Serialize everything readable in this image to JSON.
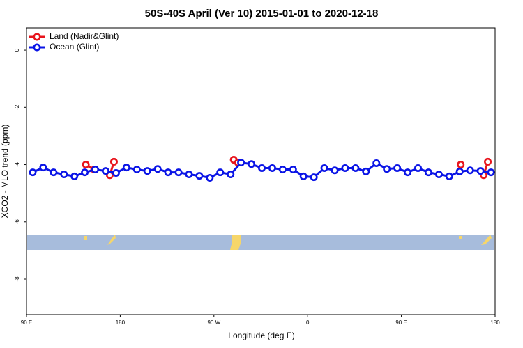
{
  "chart_data": {
    "type": "line",
    "title": "50S-40S April (Ver 10)   2015-01-01 to 2020-12-18",
    "x_label": "Longitude (deg E)",
    "y_label": "XCO2 - MLO trend (ppm)",
    "xlim": [
      90,
      540
    ],
    "xticks": [
      {
        "value": 90,
        "label": "90 E"
      },
      {
        "value": 180,
        "label": "180"
      },
      {
        "value": 270,
        "label": "90 W"
      },
      {
        "value": 360,
        "label": "0"
      },
      {
        "value": 450,
        "label": "90 E"
      },
      {
        "value": 540,
        "label": "180"
      }
    ],
    "ylim": [
      -9.24,
      0.78
    ],
    "yticks": [
      0,
      -2,
      -4,
      -6,
      -8
    ],
    "legend": "top-left",
    "series": [
      {
        "name": "Land (Nadir&Glint)",
        "color": "#e8141c",
        "x": [
          147,
          155,
          160,
          170,
          174,
          187,
          289,
          293,
          300,
          507,
          515,
          529,
          533
        ],
        "values": [
          -4.0,
          -4.17,
          null,
          -4.37,
          -3.9,
          null,
          -3.83,
          -3.93,
          null,
          -4.0,
          null,
          -4.37,
          -3.9
        ]
      },
      {
        "name": "Ocean (Glint)",
        "color": "#0a14e6",
        "x": [
          96,
          106,
          116,
          126,
          136,
          146,
          156,
          166,
          176,
          186,
          196,
          206,
          216,
          226,
          236,
          246,
          256,
          266,
          276,
          286,
          296,
          306,
          316,
          326,
          336,
          346,
          356,
          366,
          376,
          386,
          396,
          406,
          416,
          426,
          436,
          446,
          456,
          466,
          476,
          486,
          496,
          506,
          516,
          526,
          536
        ],
        "values": [
          -4.27,
          -4.1,
          -4.27,
          -4.34,
          -4.41,
          -4.27,
          -4.17,
          -4.22,
          -4.29,
          -4.1,
          -4.17,
          -4.22,
          -4.15,
          -4.27,
          -4.27,
          -4.34,
          -4.39,
          -4.46,
          -4.27,
          -4.34,
          -3.93,
          -3.98,
          -4.12,
          -4.12,
          -4.17,
          -4.17,
          -4.41,
          -4.44,
          -4.12,
          -4.2,
          -4.12,
          -4.12,
          -4.24,
          -3.95,
          -4.15,
          -4.12,
          -4.27,
          -4.12,
          -4.27,
          -4.34,
          -4.41,
          -4.24,
          -4.2,
          -4.22,
          -4.27
        ]
      }
    ]
  }
}
